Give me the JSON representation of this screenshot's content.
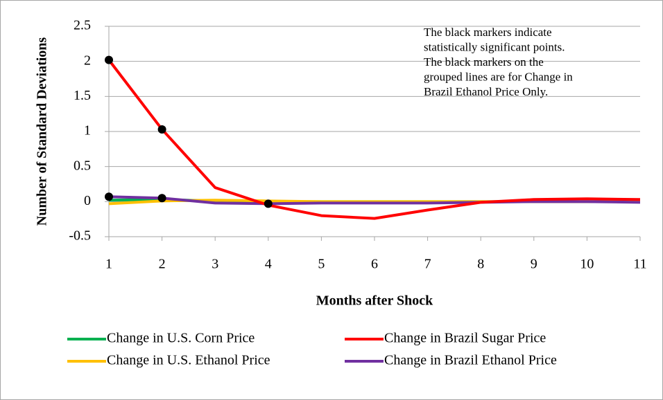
{
  "chart_data": {
    "type": "line",
    "x": [
      1,
      2,
      3,
      4,
      5,
      6,
      7,
      8,
      9,
      10,
      11
    ],
    "xlim": [
      1,
      11
    ],
    "xticks": [
      1,
      2,
      3,
      4,
      5,
      6,
      7,
      8,
      9,
      10,
      11
    ],
    "ylim": [
      -0.5,
      2.5
    ],
    "yticks": [
      -0.5,
      0,
      0.5,
      1,
      1.5,
      2,
      2.5
    ],
    "grid": true,
    "x_label": "Months after Shock",
    "y_label": "Number of Standard Deviations",
    "annotation": [
      "The black markers indicate",
      "statistically significant points.",
      "The black markers on the",
      "grouped lines are for Change in",
      "Brazil Ethanol Price Only."
    ],
    "legend": "bottom",
    "marker_color": "#000000",
    "series": [
      {
        "name": "Change in U.S. Corn Price",
        "color": "#00b050",
        "values": [
          0.02,
          0.03,
          0.01,
          0.0,
          0.0,
          0.0,
          0.0,
          0.0,
          0.0,
          0.0,
          0.0
        ]
      },
      {
        "name": "Change in Brazil Sugar Price",
        "color": "#ff0000",
        "values": [
          2.02,
          1.03,
          0.2,
          -0.05,
          -0.2,
          -0.24,
          -0.12,
          -0.01,
          0.03,
          0.04,
          0.03
        ],
        "markers": [
          0,
          1
        ]
      },
      {
        "name": "Change in U.S. Ethanol Price",
        "color": "#ffc000",
        "values": [
          -0.03,
          0.01,
          0.02,
          0.01,
          0.0,
          0.0,
          0.0,
          0.0,
          0.0,
          0.0,
          0.0
        ]
      },
      {
        "name": "Change in Brazil Ethanol Price",
        "color": "#7030a0",
        "values": [
          0.07,
          0.05,
          -0.02,
          -0.03,
          -0.02,
          -0.02,
          -0.02,
          -0.01,
          0.0,
          0.0,
          -0.01
        ],
        "markers": [
          0,
          1,
          3
        ]
      }
    ]
  }
}
